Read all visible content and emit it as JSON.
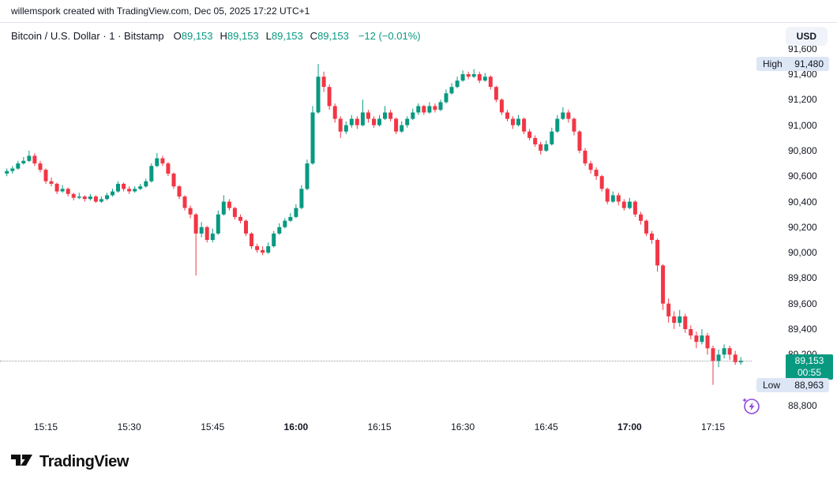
{
  "attribution": "willemspork created with TradingView.com, Dec 05, 2025 17:22 UTC+1",
  "header": {
    "title": "Bitcoin / U.S. Dollar · 1 · Bitstamp",
    "ohlc": [
      {
        "label": "O",
        "value": "89,153"
      },
      {
        "label": "H",
        "value": "89,153"
      },
      {
        "label": "L",
        "value": "89,153"
      },
      {
        "label": "C",
        "value": "89,153"
      }
    ],
    "change": "−12 (−0.01%)"
  },
  "currency_button": "USD",
  "colors": {
    "up": "#089981",
    "down": "#F23645",
    "badge_hl_bg": "#DCE6F5",
    "last_badge_bg": "#089981",
    "accent_purple": "#8F4BDA"
  },
  "price_scale": {
    "ticks": [
      {
        "value": 91600,
        "label": "91,600"
      },
      {
        "value": 91400,
        "label": "91,400"
      },
      {
        "value": 91200,
        "label": "91,200"
      },
      {
        "value": 91000,
        "label": "91,000"
      },
      {
        "value": 90800,
        "label": "90,800"
      },
      {
        "value": 90600,
        "label": "90,600"
      },
      {
        "value": 90400,
        "label": "90,400"
      },
      {
        "value": 90200,
        "label": "90,200"
      },
      {
        "value": 90000,
        "label": "90,000"
      },
      {
        "value": 89800,
        "label": "89,800"
      },
      {
        "value": 89600,
        "label": "89,600"
      },
      {
        "value": 89400,
        "label": "89,400"
      },
      {
        "value": 89200,
        "label": "89,200"
      },
      {
        "value": 88800,
        "label": "88,800"
      }
    ],
    "high_badge": {
      "label": "High",
      "value": "91,480"
    },
    "low_badge": {
      "label": "Low",
      "value": "88,963"
    },
    "last_badge": {
      "price": "89,153",
      "countdown": "00:55"
    }
  },
  "time_scale": {
    "ticks": [
      {
        "label": "15:15",
        "major": false
      },
      {
        "label": "15:30",
        "major": false
      },
      {
        "label": "15:45",
        "major": false
      },
      {
        "label": "16:00",
        "major": true
      },
      {
        "label": "16:15",
        "major": false
      },
      {
        "label": "16:30",
        "major": false
      },
      {
        "label": "16:45",
        "major": false
      },
      {
        "label": "17:00",
        "major": true
      },
      {
        "label": "17:15",
        "major": false
      }
    ]
  },
  "footer": {
    "brand": "TradingView"
  },
  "chart_data": {
    "type": "candlestick",
    "title": "Bitcoin / U.S. Dollar",
    "exchange": "Bitstamp",
    "interval": "1 minute",
    "ylabel": "Price (USD)",
    "ylim": [
      88700,
      91620
    ],
    "grid": false,
    "legend_position": "top-left",
    "high": 91480,
    "low": 88963,
    "last": 89153,
    "open": 89153,
    "change": -12,
    "change_pct": -0.01,
    "countdown": "00:55",
    "x_ticks": [
      "15:15",
      "15:30",
      "15:45",
      "16:00",
      "16:15",
      "16:30",
      "16:45",
      "17:00",
      "17:15"
    ],
    "candle_format": [
      "time",
      "open",
      "high",
      "low",
      "close"
    ],
    "candles": [
      [
        "15:08",
        90620,
        90660,
        90600,
        90640
      ],
      [
        "15:09",
        90640,
        90680,
        90620,
        90660
      ],
      [
        "15:10",
        90660,
        90720,
        90650,
        90700
      ],
      [
        "15:11",
        90700,
        90750,
        90690,
        90720
      ],
      [
        "15:12",
        90720,
        90800,
        90710,
        90760
      ],
      [
        "15:13",
        90760,
        90780,
        90680,
        90700
      ],
      [
        "15:14",
        90700,
        90720,
        90630,
        90650
      ],
      [
        "15:15",
        90650,
        90660,
        90540,
        90560
      ],
      [
        "15:16",
        90560,
        90590,
        90520,
        90540
      ],
      [
        "15:17",
        90540,
        90550,
        90460,
        90480
      ],
      [
        "15:18",
        90480,
        90530,
        90470,
        90500
      ],
      [
        "15:19",
        90500,
        90510,
        90440,
        90460
      ],
      [
        "15:20",
        90460,
        90470,
        90410,
        90430
      ],
      [
        "15:21",
        90430,
        90470,
        90420,
        90440
      ],
      [
        "15:22",
        90440,
        90450,
        90400,
        90420
      ],
      [
        "15:23",
        90420,
        90460,
        90410,
        90440
      ],
      [
        "15:24",
        90440,
        90450,
        90390,
        90400
      ],
      [
        "15:25",
        90400,
        90440,
        90390,
        90420
      ],
      [
        "15:26",
        90420,
        90470,
        90410,
        90450
      ],
      [
        "15:27",
        90450,
        90500,
        90440,
        90480
      ],
      [
        "15:28",
        90480,
        90560,
        90470,
        90540
      ],
      [
        "15:29",
        90540,
        90550,
        90480,
        90500
      ],
      [
        "15:30",
        90500,
        90520,
        90460,
        90480
      ],
      [
        "15:31",
        90480,
        90520,
        90470,
        90500
      ],
      [
        "15:32",
        90500,
        90540,
        90490,
        90520
      ],
      [
        "15:33",
        90520,
        90580,
        90510,
        90560
      ],
      [
        "15:34",
        90560,
        90700,
        90550,
        90680
      ],
      [
        "15:35",
        90680,
        90780,
        90670,
        90740
      ],
      [
        "15:36",
        90740,
        90760,
        90680,
        90700
      ],
      [
        "15:37",
        90700,
        90710,
        90600,
        90620
      ],
      [
        "15:38",
        90620,
        90630,
        90500,
        90520
      ],
      [
        "15:39",
        90520,
        90530,
        90420,
        90440
      ],
      [
        "15:40",
        90440,
        90450,
        90330,
        90350
      ],
      [
        "15:41",
        90350,
        90370,
        90270,
        90300
      ],
      [
        "15:42",
        90300,
        90310,
        89820,
        90150
      ],
      [
        "15:43",
        90150,
        90240,
        90120,
        90200
      ],
      [
        "15:44",
        90200,
        90210,
        90080,
        90100
      ],
      [
        "15:45",
        90100,
        90190,
        90080,
        90150
      ],
      [
        "15:46",
        90150,
        90330,
        90140,
        90300
      ],
      [
        "15:47",
        90300,
        90450,
        90290,
        90400
      ],
      [
        "15:48",
        90400,
        90420,
        90330,
        90350
      ],
      [
        "15:49",
        90350,
        90360,
        90260,
        90280
      ],
      [
        "15:50",
        90280,
        90300,
        90230,
        90250
      ],
      [
        "15:51",
        90250,
        90260,
        90130,
        90150
      ],
      [
        "15:52",
        90150,
        90160,
        90030,
        90050
      ],
      [
        "15:53",
        90050,
        90070,
        90000,
        90020
      ],
      [
        "15:54",
        90020,
        90050,
        89980,
        90000
      ],
      [
        "15:55",
        90000,
        90080,
        89990,
        90050
      ],
      [
        "15:56",
        90050,
        90170,
        90040,
        90150
      ],
      [
        "15:57",
        90150,
        90230,
        90140,
        90200
      ],
      [
        "15:58",
        90200,
        90270,
        90190,
        90250
      ],
      [
        "15:59",
        90250,
        90310,
        90240,
        90280
      ],
      [
        "16:00",
        90280,
        90380,
        90270,
        90350
      ],
      [
        "16:01",
        90350,
        90530,
        90340,
        90500
      ],
      [
        "16:02",
        90500,
        90730,
        90490,
        90700
      ],
      [
        "16:03",
        90700,
        91150,
        90690,
        91100
      ],
      [
        "16:04",
        91100,
        91480,
        91090,
        91380
      ],
      [
        "16:05",
        91380,
        91420,
        91260,
        91300
      ],
      [
        "16:06",
        91300,
        91320,
        91120,
        91150
      ],
      [
        "16:07",
        91150,
        91170,
        91020,
        91050
      ],
      [
        "16:08",
        91050,
        91070,
        90900,
        90950
      ],
      [
        "16:09",
        90950,
        91030,
        90930,
        91000
      ],
      [
        "16:10",
        91000,
        91080,
        90980,
        91050
      ],
      [
        "16:11",
        91050,
        91070,
        90970,
        91000
      ],
      [
        "16:12",
        91000,
        91200,
        90990,
        91100
      ],
      [
        "16:13",
        91100,
        91120,
        91020,
        91050
      ],
      [
        "16:14",
        91050,
        91070,
        90980,
        91000
      ],
      [
        "16:15",
        91000,
        91080,
        90990,
        91050
      ],
      [
        "16:16",
        91050,
        91150,
        91040,
        91100
      ],
      [
        "16:17",
        91100,
        91120,
        91030,
        91050
      ],
      [
        "16:18",
        91050,
        91060,
        90930,
        90950
      ],
      [
        "16:19",
        90950,
        91030,
        90940,
        91000
      ],
      [
        "16:20",
        91000,
        91070,
        90980,
        91050
      ],
      [
        "16:21",
        91050,
        91130,
        91040,
        91100
      ],
      [
        "16:22",
        91100,
        91170,
        91080,
        91150
      ],
      [
        "16:23",
        91150,
        91160,
        91080,
        91100
      ],
      [
        "16:24",
        91100,
        91180,
        91090,
        91150
      ],
      [
        "16:25",
        91150,
        91170,
        91100,
        91120
      ],
      [
        "16:26",
        91120,
        91200,
        91110,
        91180
      ],
      [
        "16:27",
        91180,
        91280,
        91170,
        91250
      ],
      [
        "16:28",
        91250,
        91330,
        91240,
        91300
      ],
      [
        "16:29",
        91300,
        91380,
        91290,
        91350
      ],
      [
        "16:30",
        91350,
        91430,
        91340,
        91400
      ],
      [
        "16:31",
        91400,
        91420,
        91360,
        91380
      ],
      [
        "16:32",
        91380,
        91440,
        91370,
        91400
      ],
      [
        "16:33",
        91400,
        91420,
        91330,
        91350
      ],
      [
        "16:34",
        91350,
        91410,
        91340,
        91380
      ],
      [
        "16:35",
        91380,
        91390,
        91280,
        91300
      ],
      [
        "16:36",
        91300,
        91310,
        91180,
        91200
      ],
      [
        "16:37",
        91200,
        91210,
        91080,
        91100
      ],
      [
        "16:38",
        91100,
        91120,
        91030,
        91050
      ],
      [
        "16:39",
        91050,
        91070,
        90970,
        91000
      ],
      [
        "16:40",
        91000,
        91080,
        90990,
        91050
      ],
      [
        "16:41",
        91050,
        91060,
        90930,
        90950
      ],
      [
        "16:42",
        90950,
        90970,
        90880,
        90900
      ],
      [
        "16:43",
        90900,
        90920,
        90830,
        90850
      ],
      [
        "16:44",
        90850,
        90870,
        90770,
        90800
      ],
      [
        "16:45",
        90800,
        90880,
        90790,
        90850
      ],
      [
        "16:46",
        90850,
        90980,
        90840,
        90950
      ],
      [
        "16:47",
        90950,
        91080,
        90940,
        91050
      ],
      [
        "16:48",
        91050,
        91140,
        91040,
        91100
      ],
      [
        "16:49",
        91100,
        91120,
        91020,
        91050
      ],
      [
        "16:50",
        91050,
        91060,
        90920,
        90950
      ],
      [
        "16:51",
        90950,
        90960,
        90780,
        90800
      ],
      [
        "16:52",
        90800,
        90820,
        90680,
        90700
      ],
      [
        "16:53",
        90700,
        90720,
        90620,
        90650
      ],
      [
        "16:54",
        90650,
        90670,
        90570,
        90600
      ],
      [
        "16:55",
        90600,
        90610,
        90480,
        90500
      ],
      [
        "16:56",
        90500,
        90510,
        90380,
        90400
      ],
      [
        "16:57",
        90400,
        90480,
        90390,
        90450
      ],
      [
        "16:58",
        90450,
        90470,
        90370,
        90400
      ],
      [
        "16:59",
        90400,
        90420,
        90330,
        90350
      ],
      [
        "17:00",
        90350,
        90430,
        90340,
        90400
      ],
      [
        "17:01",
        90400,
        90410,
        90280,
        90300
      ],
      [
        "17:02",
        90300,
        90320,
        90220,
        90250
      ],
      [
        "17:03",
        90250,
        90260,
        90130,
        90150
      ],
      [
        "17:04",
        90150,
        90170,
        90070,
        90100
      ],
      [
        "17:05",
        90100,
        90110,
        89850,
        89900
      ],
      [
        "17:06",
        89900,
        89910,
        89550,
        89600
      ],
      [
        "17:07",
        89600,
        89640,
        89450,
        89500
      ],
      [
        "17:08",
        89500,
        89540,
        89400,
        89450
      ],
      [
        "17:09",
        89450,
        89550,
        89420,
        89500
      ],
      [
        "17:10",
        89500,
        89520,
        89370,
        89400
      ],
      [
        "17:11",
        89400,
        89430,
        89320,
        89350
      ],
      [
        "17:12",
        89350,
        89380,
        89250,
        89300
      ],
      [
        "17:13",
        89300,
        89400,
        89280,
        89350
      ],
      [
        "17:14",
        89350,
        89370,
        89200,
        89250
      ],
      [
        "17:15",
        89250,
        89270,
        88963,
        89150
      ],
      [
        "17:16",
        89150,
        89240,
        89100,
        89200
      ],
      [
        "17:17",
        89200,
        89280,
        89170,
        89250
      ],
      [
        "17:18",
        89250,
        89270,
        89160,
        89200
      ],
      [
        "17:19",
        89200,
        89230,
        89120,
        89140
      ],
      [
        "17:20",
        89140,
        89180,
        89120,
        89153
      ]
    ]
  }
}
